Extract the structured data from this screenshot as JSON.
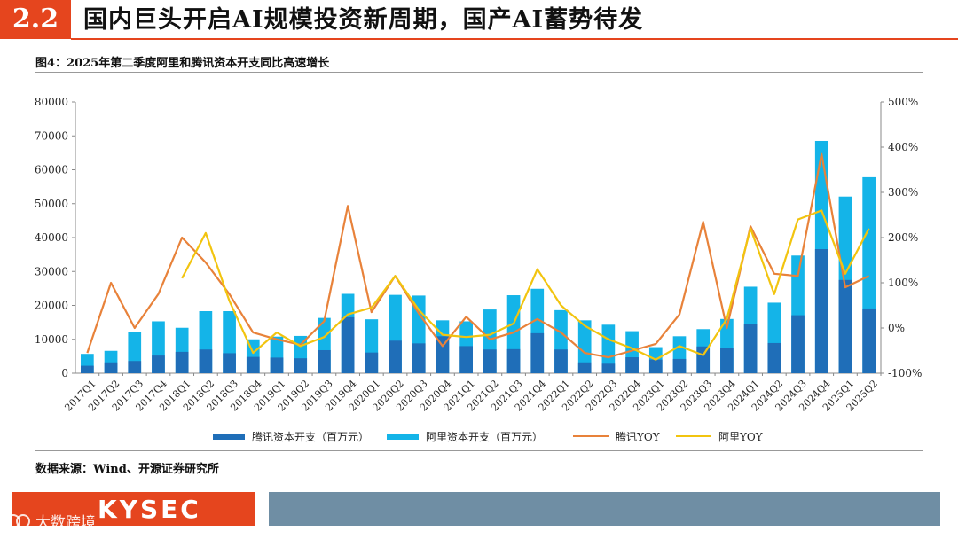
{
  "header": {
    "section_number": "2.2",
    "title": "国内巨头开启AI规模投资新周期，国产AI蓄势待发"
  },
  "figure": {
    "title": "图4：2025年第二季度阿里和腾讯资本开支同比高速增长",
    "source": "数据来源：Wind、开源证券研究所"
  },
  "branding": {
    "logo": "KYSEC",
    "watermark": "大数跨境"
  },
  "chart_data": {
    "type": "bar",
    "categories": [
      "2017Q1",
      "2017Q2",
      "2017Q3",
      "2017Q4",
      "2018Q1",
      "2018Q2",
      "2018Q3",
      "2018Q4",
      "2019Q1",
      "2019Q2",
      "2019Q3",
      "2019Q4",
      "2020Q1",
      "2020Q2",
      "2020Q3",
      "2020Q4",
      "2021Q1",
      "2021Q2",
      "2021Q3",
      "2021Q4",
      "2022Q1",
      "2022Q2",
      "2022Q3",
      "2022Q4",
      "2023Q1",
      "2023Q2",
      "2023Q3",
      "2023Q4",
      "2024Q1",
      "2024Q2",
      "2024Q3",
      "2024Q4",
      "2025Q1",
      "2025Q2"
    ],
    "bar_stacking": "overlay",
    "series": [
      {
        "name": "腾讯资本开支（百万元）",
        "kind": "bar",
        "axis": "left",
        "color": "#1f6eb8",
        "values": [
          2200,
          3200,
          3600,
          5200,
          6300,
          7000,
          5900,
          4800,
          4600,
          4400,
          6800,
          16500,
          6100,
          9600,
          8800,
          10900,
          8000,
          7000,
          7100,
          11800,
          7000,
          3200,
          2800,
          4700,
          4000,
          4200,
          7900,
          7500,
          14500,
          8900,
          17100,
          36600,
          27500,
          19100
        ]
      },
      {
        "name": "阿里资本开支（百万元）",
        "kind": "bar",
        "axis": "left",
        "color": "#14b4e8",
        "values": [
          5700,
          6600,
          12200,
          15300,
          13400,
          18300,
          18300,
          10000,
          10800,
          11000,
          16300,
          23400,
          15900,
          23100,
          22900,
          15600,
          15300,
          18800,
          23000,
          24900,
          18600,
          15600,
          14300,
          12400,
          7700,
          10900,
          13000,
          16000,
          25500,
          20800,
          34700,
          68500,
          52100,
          57800
        ]
      },
      {
        "name": "腾讯YOY",
        "kind": "line",
        "axis": "right",
        "color": "#e8823a",
        "values": [
          -55,
          100,
          0,
          75,
          200,
          145,
          75,
          -10,
          -25,
          -37,
          15,
          270,
          35,
          115,
          32,
          -40,
          25,
          -25,
          -10,
          20,
          -10,
          -55,
          -65,
          -50,
          -35,
          30,
          235,
          0,
          225,
          120,
          115,
          385,
          90,
          115
        ]
      },
      {
        "name": "阿里YOY",
        "kind": "line",
        "axis": "right",
        "color": "#f2c40f",
        "values": [
          null,
          null,
          null,
          null,
          110,
          210,
          60,
          -55,
          -10,
          -40,
          -20,
          30,
          45,
          115,
          40,
          -15,
          -20,
          -15,
          10,
          130,
          50,
          5,
          -25,
          -45,
          -70,
          -40,
          -60,
          20,
          220,
          75,
          240,
          260,
          120,
          220
        ]
      }
    ],
    "y_left": {
      "min": 0,
      "max": 80000,
      "ticks": [
        0,
        10000,
        20000,
        30000,
        40000,
        50000,
        60000,
        70000,
        80000
      ]
    },
    "y_right": {
      "min": -100,
      "max": 500,
      "ticks": [
        -100,
        0,
        100,
        200,
        300,
        400,
        500
      ],
      "format": "percent"
    },
    "legend_position": "bottom",
    "grid": false
  }
}
